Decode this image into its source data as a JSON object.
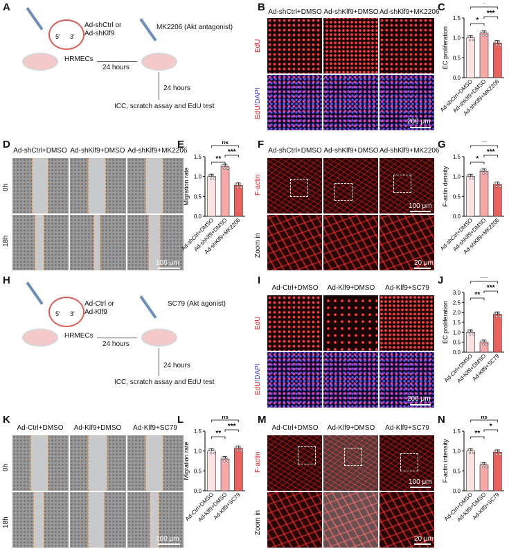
{
  "panel_letters": [
    "A",
    "B",
    "C",
    "D",
    "E",
    "F",
    "G",
    "H",
    "I",
    "J",
    "K",
    "L",
    "M",
    "N"
  ],
  "panelA": {
    "vector_label": "Ad-shCtrl or\nAd-shKlf9",
    "vector_line1": "Ad-shCtrl or",
    "vector_line2": "Ad-shKlf9",
    "inhibitor": "MK2206 (Akt antagonist)",
    "cells": "HRMECs",
    "time1": "24 hours",
    "time2": "24 hours",
    "end": "ICC, scratch assay and EdU test",
    "prime5": "5'",
    "prime3": "3'"
  },
  "panelH": {
    "vector_line1": "Ad-Ctrl or",
    "vector_line2": "Ad-Klf9",
    "agonist": "SC79 (Akt agonist)",
    "cells": "HRMECs",
    "time1": "24 hours",
    "time2": "24 hours",
    "end": "ICC, scratch assay and EdU test",
    "prime5": "5'",
    "prime3": "3'"
  },
  "groups_top": [
    "Ad-shCtrl+DMSO",
    "Ad-shKlf9+DMSO",
    "Ad-shKlf9+MK2206"
  ],
  "groups_bottom": [
    "Ad-Ctrl+DMSO",
    "Ad-Klf9+DMSO",
    "Ad-Klf9+SC79"
  ],
  "row_labels": {
    "edu": "EdU",
    "edu_dapi_1": "EdU",
    "edu_dapi_2": "/DAPI",
    "h0": "0h",
    "h18": "18h",
    "factin": "F-actin",
    "zoom": "Zoom in"
  },
  "scales": {
    "s200": "200 μm",
    "s100": "100 μm",
    "s20": "20 μm"
  },
  "colors": {
    "ctrl": "#fde3e3",
    "mid": "#f7a8a8",
    "high": "#e8625e",
    "edu_red": "#e41a1c",
    "dapi_blue": "#3a3acb",
    "scratch_line": "#f08a24"
  },
  "chart_data": [
    {
      "panel": "C",
      "type": "bar",
      "ylabel": "EC proliferation",
      "ylim": [
        0,
        1.5
      ],
      "yticks": [
        "0.0",
        "0.5",
        "1.0",
        "1.5"
      ],
      "categories": [
        "Ad-shCtrl+DMSO",
        "Ad-shKlf9+DMSO",
        "Ad-shKlf9+MK2206"
      ],
      "values": [
        1.0,
        1.12,
        0.87
      ],
      "sig": [
        {
          "from": 0,
          "to": 1,
          "label": "*"
        },
        {
          "from": 1,
          "to": 2,
          "label": "***"
        },
        {
          "from": 0,
          "to": 2,
          "label": "*"
        }
      ]
    },
    {
      "panel": "E",
      "type": "bar",
      "ylabel": "Migration rate",
      "ylim": [
        0,
        1.5
      ],
      "yticks": [
        "0.0",
        "0.5",
        "1.0",
        "1.5"
      ],
      "categories": [
        "Ad-shCtrl+DMSO",
        "Ad-shKlf9+DMSO",
        "Ad-shKlf9+MK2206"
      ],
      "values": [
        1.0,
        1.25,
        0.78
      ],
      "sig": [
        {
          "from": 0,
          "to": 1,
          "label": "**"
        },
        {
          "from": 1,
          "to": 2,
          "label": "***"
        },
        {
          "from": 0,
          "to": 2,
          "label": "ns"
        }
      ]
    },
    {
      "panel": "G",
      "type": "bar",
      "ylabel": "F-actin density",
      "ylim": [
        0,
        1.5
      ],
      "yticks": [
        "0.0",
        "0.5",
        "1.0",
        "1.5"
      ],
      "categories": [
        "Ad-shCtrl+DMSO",
        "Ad-shKlf9+DMSO",
        "Ad-shKlf9+MK2206"
      ],
      "values": [
        1.0,
        1.13,
        0.8
      ],
      "sig": [
        {
          "from": 0,
          "to": 1,
          "label": "*"
        },
        {
          "from": 1,
          "to": 2,
          "label": "***"
        },
        {
          "from": 0,
          "to": 2,
          "label": "**"
        }
      ]
    },
    {
      "panel": "J",
      "type": "bar",
      "ylabel": "EC proliferation",
      "ylim": [
        0,
        3.0
      ],
      "yticks": [
        "0.0",
        "0.5",
        "1.0",
        "1.5",
        "2.0",
        "2.5",
        "3.0"
      ],
      "categories": [
        "Ad-Ctrl+DMSO",
        "Ad-Klf9+DMSO",
        "Ad-Klf9+SC79"
      ],
      "values": [
        1.0,
        0.5,
        1.9
      ],
      "sig": [
        {
          "from": 0,
          "to": 1,
          "label": "**"
        },
        {
          "from": 1,
          "to": 2,
          "label": "***"
        },
        {
          "from": 0,
          "to": 2,
          "label": "***"
        }
      ]
    },
    {
      "panel": "L",
      "type": "bar",
      "ylabel": "Migration rate",
      "ylim": [
        0,
        1.5
      ],
      "yticks": [
        "0.0",
        "0.5",
        "1.0",
        "1.5"
      ],
      "categories": [
        "Ad-Ctrl+DMSO",
        "Ad-Klf9+DMSO",
        "Ad-Klf9+SC79"
      ],
      "values": [
        1.0,
        0.8,
        1.07
      ],
      "sig": [
        {
          "from": 0,
          "to": 1,
          "label": "**"
        },
        {
          "from": 1,
          "to": 2,
          "label": "***"
        },
        {
          "from": 0,
          "to": 2,
          "label": "ns"
        }
      ]
    },
    {
      "panel": "N",
      "type": "bar",
      "ylabel": "F-actin intensity",
      "ylim": [
        0,
        1.5
      ],
      "yticks": [
        "0.0",
        "0.5",
        "1.0",
        "1.5"
      ],
      "categories": [
        "Ad-Ctrl+DMSO",
        "Ad-Klf9+DMSO",
        "Ad-Klf9+SC79"
      ],
      "values": [
        1.0,
        0.65,
        0.97
      ],
      "sig": [
        {
          "from": 0,
          "to": 1,
          "label": "**"
        },
        {
          "from": 1,
          "to": 2,
          "label": "*"
        },
        {
          "from": 0,
          "to": 2,
          "label": "ns"
        }
      ]
    }
  ]
}
